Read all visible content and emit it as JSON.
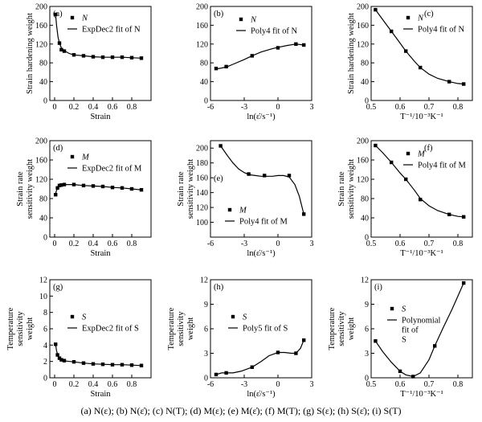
{
  "caption": "(a) N(ε); (b) N(ε̇); (c) N(T); (d) M(ε); (e) M(ε̇); (f) M(T); (g) S(ε); (h) S(ε̇); (i) S(T)",
  "chart_data": [
    {
      "panel": "(a)",
      "type": "scatter",
      "ylabel": [
        "Strain hardening weight"
      ],
      "xlabel": "Strain",
      "xlim": [
        -0.05,
        1.0
      ],
      "ylim": [
        0,
        200
      ],
      "xticks": [
        0,
        0.2,
        0.4,
        0.6,
        0.8
      ],
      "xtick_labels": [
        "0",
        "0.2",
        "0.4",
        "0.6",
        "0.8"
      ],
      "yticks": [
        0,
        40,
        80,
        120,
        160,
        200
      ],
      "ytick_labels": [
        "0",
        "40",
        "80",
        "120",
        "160",
        "200"
      ],
      "legend": [
        "N",
        "ExpDec2 fit of N"
      ],
      "points": [
        [
          0.01,
          183
        ],
        [
          0.05,
          122
        ],
        [
          0.07,
          108
        ],
        [
          0.1,
          105
        ],
        [
          0.2,
          97
        ],
        [
          0.3,
          95
        ],
        [
          0.4,
          93
        ],
        [
          0.5,
          92
        ],
        [
          0.6,
          92
        ],
        [
          0.7,
          92
        ],
        [
          0.8,
          91
        ],
        [
          0.9,
          90
        ]
      ],
      "fit": [
        [
          0.01,
          183
        ],
        [
          0.02,
          160
        ],
        [
          0.035,
          135
        ],
        [
          0.05,
          122
        ],
        [
          0.07,
          112
        ],
        [
          0.1,
          106
        ],
        [
          0.15,
          100
        ],
        [
          0.2,
          97
        ],
        [
          0.3,
          95
        ],
        [
          0.4,
          93
        ],
        [
          0.5,
          92
        ],
        [
          0.6,
          92
        ],
        [
          0.7,
          92
        ],
        [
          0.8,
          91
        ],
        [
          0.9,
          90
        ]
      ]
    },
    {
      "panel": "(b)",
      "type": "scatter",
      "ylabel": [],
      "xlabel": "ln(ε̇/s⁻¹)",
      "xlim": [
        -6,
        3
      ],
      "ylim": [
        0,
        200
      ],
      "xticks": [
        -6,
        -3,
        0,
        3
      ],
      "xtick_labels": [
        "-6",
        "-3",
        "0",
        "3"
      ],
      "yticks": [
        0,
        40,
        80,
        120,
        160,
        200
      ],
      "ytick_labels": [
        "0",
        "40",
        "80",
        "120",
        "160",
        "200"
      ],
      "legend": [
        "N",
        "Poly4 fit of N"
      ],
      "points": [
        [
          -5.5,
          68
        ],
        [
          -4.6,
          72
        ],
        [
          -2.3,
          95
        ],
        [
          0,
          112
        ],
        [
          1.6,
          120
        ],
        [
          2.3,
          118
        ]
      ],
      "fit": [
        [
          -5.5,
          67
        ],
        [
          -5,
          69
        ],
        [
          -4.5,
          72
        ],
        [
          -4,
          77
        ],
        [
          -3,
          87
        ],
        [
          -2.3,
          95
        ],
        [
          -1.5,
          103
        ],
        [
          -0.5,
          110
        ],
        [
          0,
          113
        ],
        [
          0.8,
          117
        ],
        [
          1.6,
          120
        ],
        [
          2.3,
          118
        ]
      ]
    },
    {
      "panel": "(c)",
      "type": "scatter",
      "ylabel": [
        "Strain hardening weight"
      ],
      "xlabel": "T⁻¹/10⁻³K⁻¹",
      "xlim": [
        0.5,
        0.85
      ],
      "ylim": [
        0,
        200
      ],
      "xticks": [
        0.5,
        0.6,
        0.7,
        0.8
      ],
      "xtick_labels": [
        "0.5",
        "0.6",
        "0.7",
        "0.8"
      ],
      "yticks": [
        0,
        40,
        80,
        120,
        160,
        200
      ],
      "ytick_labels": [
        "0",
        "40",
        "80",
        "120",
        "160",
        "200"
      ],
      "legend": [
        "N",
        "Poly4 fit of N"
      ],
      "points": [
        [
          0.515,
          193
        ],
        [
          0.57,
          147
        ],
        [
          0.62,
          105
        ],
        [
          0.67,
          70
        ],
        [
          0.77,
          40
        ],
        [
          0.82,
          35
        ]
      ],
      "fit": [
        [
          0.515,
          193
        ],
        [
          0.54,
          172
        ],
        [
          0.57,
          147
        ],
        [
          0.6,
          122
        ],
        [
          0.62,
          105
        ],
        [
          0.65,
          83
        ],
        [
          0.67,
          70
        ],
        [
          0.7,
          56
        ],
        [
          0.73,
          47
        ],
        [
          0.77,
          40
        ],
        [
          0.8,
          36
        ],
        [
          0.82,
          35
        ]
      ]
    },
    {
      "panel": "(d)",
      "type": "scatter",
      "ylabel": [
        "Strain rate",
        "sensitivity weight"
      ],
      "xlabel": "Strain",
      "xlim": [
        -0.05,
        1.0
      ],
      "ylim": [
        0,
        200
      ],
      "xticks": [
        0,
        0.2,
        0.4,
        0.6,
        0.8
      ],
      "xtick_labels": [
        "0",
        "0.2",
        "0.4",
        "0.6",
        "0.8"
      ],
      "yticks": [
        0,
        40,
        80,
        120,
        160,
        200
      ],
      "ytick_labels": [
        "0",
        "40",
        "80",
        "120",
        "160",
        "200"
      ],
      "legend": [
        "M",
        "ExpDec2 fit of M"
      ],
      "points": [
        [
          0.01,
          88
        ],
        [
          0.03,
          102
        ],
        [
          0.05,
          107
        ],
        [
          0.07,
          108
        ],
        [
          0.1,
          109
        ],
        [
          0.2,
          109
        ],
        [
          0.3,
          107
        ],
        [
          0.4,
          106
        ],
        [
          0.5,
          105
        ],
        [
          0.6,
          103
        ],
        [
          0.7,
          102
        ],
        [
          0.8,
          100
        ],
        [
          0.9,
          98
        ]
      ],
      "fit": [
        [
          0.01,
          90
        ],
        [
          0.02,
          97
        ],
        [
          0.04,
          104
        ],
        [
          0.06,
          107
        ],
        [
          0.1,
          109
        ],
        [
          0.2,
          109
        ],
        [
          0.3,
          107
        ],
        [
          0.4,
          106
        ],
        [
          0.5,
          105
        ],
        [
          0.6,
          103
        ],
        [
          0.7,
          102
        ],
        [
          0.8,
          100
        ],
        [
          0.9,
          98
        ]
      ]
    },
    {
      "panel": "(e)",
      "type": "scatter",
      "ylabel": [
        "Strain rate",
        "sensitivity weight"
      ],
      "xlabel": "ln(ε̇/s⁻¹)",
      "xlim": [
        -6,
        3
      ],
      "ylim": [
        80,
        210
      ],
      "xticks": [
        -6,
        -3,
        0,
        3
      ],
      "xtick_labels": [
        "-6",
        "-3",
        "0",
        "3"
      ],
      "yticks": [
        80,
        100,
        120,
        140,
        160,
        180,
        200
      ],
      "ytick_labels": [
        "",
        "100",
        "120",
        "140",
        "160",
        "180",
        "200"
      ],
      "legend": [
        "M",
        "Poly4 fit of M"
      ],
      "points": [
        [
          -5.1,
          203
        ],
        [
          -2.6,
          165
        ],
        [
          -1.2,
          163
        ],
        [
          1,
          163
        ],
        [
          2.3,
          111
        ]
      ],
      "fit": [
        [
          -5.1,
          203
        ],
        [
          -4.5,
          190
        ],
        [
          -4,
          180
        ],
        [
          -3.5,
          172
        ],
        [
          -3,
          167
        ],
        [
          -2.5,
          164
        ],
        [
          -2,
          163
        ],
        [
          -1.5,
          162
        ],
        [
          -1,
          162
        ],
        [
          -0.5,
          162
        ],
        [
          0,
          163
        ],
        [
          0.5,
          163
        ],
        [
          1,
          161
        ],
        [
          1.5,
          151
        ],
        [
          1.9,
          135
        ],
        [
          2.3,
          111
        ]
      ]
    },
    {
      "panel": "(f)",
      "type": "scatter",
      "ylabel": [
        "Strain rate",
        "sensitivity weight"
      ],
      "xlabel": "T⁻¹/10⁻³K⁻¹",
      "xlim": [
        0.5,
        0.85
      ],
      "ylim": [
        0,
        200
      ],
      "xticks": [
        0.5,
        0.6,
        0.7,
        0.8
      ],
      "xtick_labels": [
        "0.5",
        "0.6",
        "0.7",
        "0.8"
      ],
      "yticks": [
        0,
        40,
        80,
        120,
        160,
        200
      ],
      "ytick_labels": [
        "0",
        "40",
        "80",
        "120",
        "160",
        "200"
      ],
      "legend": [
        "M",
        "Poly4 fit of M"
      ],
      "points": [
        [
          0.515,
          190
        ],
        [
          0.57,
          155
        ],
        [
          0.62,
          120
        ],
        [
          0.67,
          78
        ],
        [
          0.77,
          47
        ],
        [
          0.82,
          42
        ]
      ],
      "fit": [
        [
          0.515,
          190
        ],
        [
          0.54,
          175
        ],
        [
          0.57,
          155
        ],
        [
          0.6,
          133
        ],
        [
          0.62,
          120
        ],
        [
          0.65,
          97
        ],
        [
          0.67,
          80
        ],
        [
          0.7,
          65
        ],
        [
          0.73,
          55
        ],
        [
          0.77,
          47
        ],
        [
          0.8,
          43
        ],
        [
          0.82,
          42
        ]
      ]
    },
    {
      "panel": "(g)",
      "type": "scatter",
      "ylabel": [
        "Temperature",
        "sensitivity",
        "weight"
      ],
      "xlabel": "Strain",
      "xlim": [
        -0.05,
        1.0
      ],
      "ylim": [
        0,
        12
      ],
      "xticks": [
        0,
        0.2,
        0.4,
        0.6,
        0.8
      ],
      "xtick_labels": [
        "0",
        "0.2",
        "0.4",
        "0.6",
        "0.8"
      ],
      "yticks": [
        0,
        2,
        4,
        6,
        8,
        10,
        12
      ],
      "ytick_labels": [
        "0",
        "2",
        "4",
        "6",
        "8",
        "10",
        "12"
      ],
      "legend": [
        "S",
        "ExpDec2 fit of S"
      ],
      "points": [
        [
          0.01,
          4.1
        ],
        [
          0.03,
          2.8
        ],
        [
          0.05,
          2.4
        ],
        [
          0.07,
          2.2
        ],
        [
          0.1,
          2.1
        ],
        [
          0.2,
          1.95
        ],
        [
          0.3,
          1.8
        ],
        [
          0.4,
          1.7
        ],
        [
          0.5,
          1.65
        ],
        [
          0.6,
          1.6
        ],
        [
          0.7,
          1.6
        ],
        [
          0.8,
          1.55
        ],
        [
          0.9,
          1.5
        ]
      ],
      "fit": [
        [
          0.01,
          4.1
        ],
        [
          0.02,
          3.3
        ],
        [
          0.035,
          2.7
        ],
        [
          0.05,
          2.4
        ],
        [
          0.08,
          2.2
        ],
        [
          0.12,
          2.05
        ],
        [
          0.2,
          1.95
        ],
        [
          0.3,
          1.8
        ],
        [
          0.4,
          1.7
        ],
        [
          0.5,
          1.65
        ],
        [
          0.6,
          1.6
        ],
        [
          0.7,
          1.6
        ],
        [
          0.8,
          1.55
        ],
        [
          0.9,
          1.5
        ]
      ]
    },
    {
      "panel": "(h)",
      "type": "scatter",
      "ylabel": [
        "Temperature",
        "sensitivity",
        "weight"
      ],
      "xlabel": "ln(ε̇/s⁻¹)",
      "xlim": [
        -6,
        3
      ],
      "ylim": [
        0,
        12
      ],
      "xticks": [
        -6,
        -3,
        0,
        3
      ],
      "xtick_labels": [
        "-6",
        "-3",
        "0",
        "3"
      ],
      "yticks": [
        0,
        3,
        6,
        9,
        12
      ],
      "ytick_labels": [
        "0",
        "3",
        "6",
        "9",
        "12"
      ],
      "legend": [
        "S",
        "Poly5 fit of S"
      ],
      "points": [
        [
          -5.5,
          0.4
        ],
        [
          -4.6,
          0.6
        ],
        [
          -2.3,
          1.3
        ],
        [
          0,
          3.1
        ],
        [
          1.6,
          3.0
        ],
        [
          2.3,
          4.6
        ]
      ],
      "fit": [
        [
          -5.5,
          0.4
        ],
        [
          -5,
          0.6
        ],
        [
          -4.6,
          0.6
        ],
        [
          -4,
          0.6
        ],
        [
          -3.3,
          0.8
        ],
        [
          -2.3,
          1.3
        ],
        [
          -1.5,
          2.0
        ],
        [
          -0.8,
          2.7
        ],
        [
          0,
          3.1
        ],
        [
          0.6,
          3.1
        ],
        [
          1.2,
          3.0
        ],
        [
          1.6,
          3.0
        ],
        [
          2,
          3.6
        ],
        [
          2.3,
          4.6
        ]
      ]
    },
    {
      "panel": "(i)",
      "type": "scatter",
      "ylabel": [
        "Temperature",
        "sensitivity",
        "weight"
      ],
      "xlabel": "T⁻¹/10⁻³K⁻¹",
      "xlim": [
        0.5,
        0.85
      ],
      "ylim": [
        0,
        12
      ],
      "xticks": [
        0.5,
        0.6,
        0.7,
        0.8
      ],
      "xtick_labels": [
        "0.5",
        "0.6",
        "0.7",
        "0.8"
      ],
      "yticks": [
        0,
        3,
        6,
        9,
        12
      ],
      "ytick_labels": [
        "0",
        "3",
        "6",
        "9",
        "12"
      ],
      "legend": [
        "S",
        "Polynomial",
        "fit of",
        "S"
      ],
      "points": [
        [
          0.515,
          4.5
        ],
        [
          0.6,
          0.8
        ],
        [
          0.645,
          0.15
        ],
        [
          0.72,
          3.9
        ],
        [
          0.82,
          11.6
        ]
      ],
      "fit": [
        [
          0.515,
          4.5
        ],
        [
          0.54,
          3.2
        ],
        [
          0.57,
          1.9
        ],
        [
          0.6,
          0.8
        ],
        [
          0.62,
          0.35
        ],
        [
          0.645,
          0.15
        ],
        [
          0.67,
          0.6
        ],
        [
          0.7,
          2.2
        ],
        [
          0.72,
          3.9
        ],
        [
          0.75,
          6.2
        ],
        [
          0.78,
          8.4
        ],
        [
          0.82,
          11.6
        ]
      ]
    }
  ]
}
